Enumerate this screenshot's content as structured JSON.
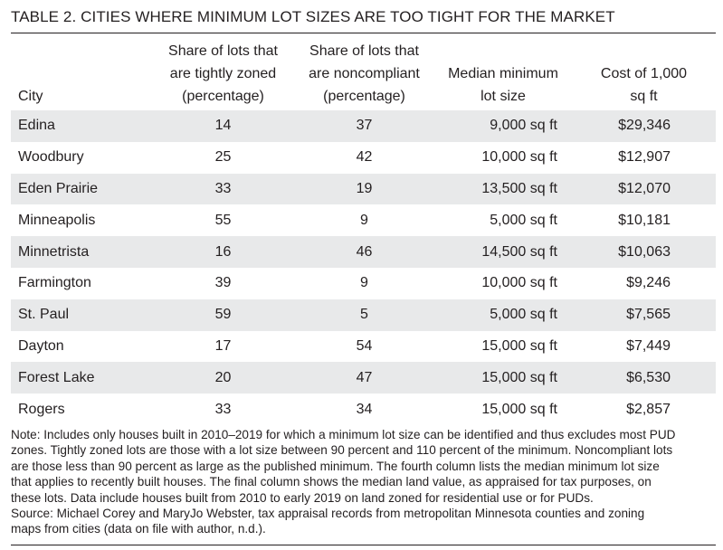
{
  "title": "TABLE 2. CITIES WHERE MINIMUM LOT SIZES ARE TOO TIGHT FOR THE MARKET",
  "columns": [
    {
      "lines": [
        "City"
      ]
    },
    {
      "lines": [
        "Share of lots that",
        "are tightly zoned",
        "(percentage)"
      ]
    },
    {
      "lines": [
        "Share of lots that",
        "are noncompliant",
        "(percentage)"
      ]
    },
    {
      "lines": [
        "Median minimum",
        "lot size"
      ]
    },
    {
      "lines": [
        "Cost of 1,000",
        "sq ft"
      ]
    }
  ],
  "rows": [
    {
      "city": "Edina",
      "tight": "14",
      "noncompliant": "37",
      "median_lot": "9,000 sq ft",
      "cost": "$29,346"
    },
    {
      "city": "Woodbury",
      "tight": "25",
      "noncompliant": "42",
      "median_lot": "10,000 sq ft",
      "cost": "$12,907"
    },
    {
      "city": "Eden Prairie",
      "tight": "33",
      "noncompliant": "19",
      "median_lot": "13,500 sq ft",
      "cost": "$12,070"
    },
    {
      "city": "Minneapolis",
      "tight": "55",
      "noncompliant": "9",
      "median_lot": "5,000 sq ft",
      "cost": "$10,181"
    },
    {
      "city": "Minnetrista",
      "tight": "16",
      "noncompliant": "46",
      "median_lot": "14,500 sq ft",
      "cost": "$10,063"
    },
    {
      "city": "Farmington",
      "tight": "39",
      "noncompliant": "9",
      "median_lot": "10,000 sq ft",
      "cost": "$9,246"
    },
    {
      "city": "St. Paul",
      "tight": "59",
      "noncompliant": "5",
      "median_lot": "5,000 sq ft",
      "cost": "$7,565"
    },
    {
      "city": "Dayton",
      "tight": "17",
      "noncompliant": "54",
      "median_lot": "15,000 sq ft",
      "cost": "$7,449"
    },
    {
      "city": "Forest Lake",
      "tight": "20",
      "noncompliant": "47",
      "median_lot": "15,000 sq ft",
      "cost": "$6,530"
    },
    {
      "city": "Rogers",
      "tight": "33",
      "noncompliant": "34",
      "median_lot": "15,000 sq ft",
      "cost": "$2,857"
    }
  ],
  "note_lines": [
    "Note: Includes only houses built in 2010–2019 for which a minimum lot size can be identified and thus excludes most PUD",
    "zones. Tightly zoned lots are those with a lot size between 90 percent and 110 percent of the minimum. Noncompliant lots",
    "are those less than 90 percent as large as the published minimum. The fourth column lists the median minimum lot size",
    "that applies to recently built houses. The final column shows the median land value, as appraised for tax purposes, on",
    "these lots. Data include houses built from 2010 to early 2019 on land zoned for residential use or for PUDs.",
    "Source: Michael Corey and MaryJo Webster, tax appraisal records from metropolitan Minnesota counties and zoning",
    "maps from cities (data on file with author, n.d.)."
  ],
  "colors": {
    "text": "#231f20",
    "row_shade": "#e8e9ea",
    "rule": "#231f20"
  }
}
